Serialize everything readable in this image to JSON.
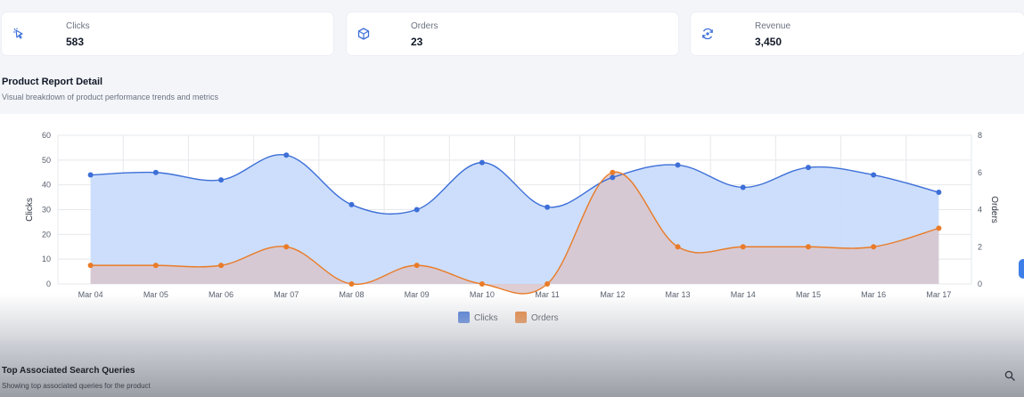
{
  "stats": [
    {
      "label": "Clicks",
      "value": "583",
      "icon": "cursor-click-icon"
    },
    {
      "label": "Orders",
      "value": "23",
      "icon": "box-icon"
    },
    {
      "label": "Revenue",
      "value": "3,450",
      "icon": "revenue-icon"
    }
  ],
  "report": {
    "title": "Product Report Detail",
    "subtitle": "Visual breakdown of product performance trends and metrics"
  },
  "queries": {
    "title": "Top Associated Search Queries",
    "subtitle": "Showing top associated queries for the product"
  },
  "colors": {
    "clicks_line": "#3d6fd8",
    "clicks_fill": "#c9dcfb",
    "orders_line": "#ea7b27",
    "orders_fill": "#d8c6cb",
    "accent": "#3d7ee8"
  },
  "chart_data": {
    "type": "area",
    "categories": [
      "Mar 04",
      "Mar 05",
      "Mar 06",
      "Mar 07",
      "Mar 08",
      "Mar 09",
      "Mar 10",
      "Mar 11",
      "Mar 12",
      "Mar 13",
      "Mar 14",
      "Mar 15",
      "Mar 16",
      "Mar 17"
    ],
    "series": [
      {
        "name": "Clicks",
        "axis": "left",
        "values": [
          44,
          45,
          42,
          52,
          32,
          30,
          49,
          31,
          43,
          48,
          39,
          47,
          44,
          37
        ]
      },
      {
        "name": "Orders",
        "axis": "right",
        "values": [
          1,
          1,
          1,
          2,
          0,
          1,
          0,
          0,
          6,
          2,
          2,
          2,
          2,
          3
        ]
      }
    ],
    "ylabel": "Clicks",
    "y2label": "Orders",
    "ylim": [
      0,
      60
    ],
    "y2lim": [
      0,
      8
    ],
    "yticks": [
      0,
      10,
      20,
      30,
      40,
      50,
      60
    ],
    "y2ticks": [
      0,
      2,
      4,
      6,
      8
    ],
    "legend": "bottom-center",
    "grid": true
  }
}
